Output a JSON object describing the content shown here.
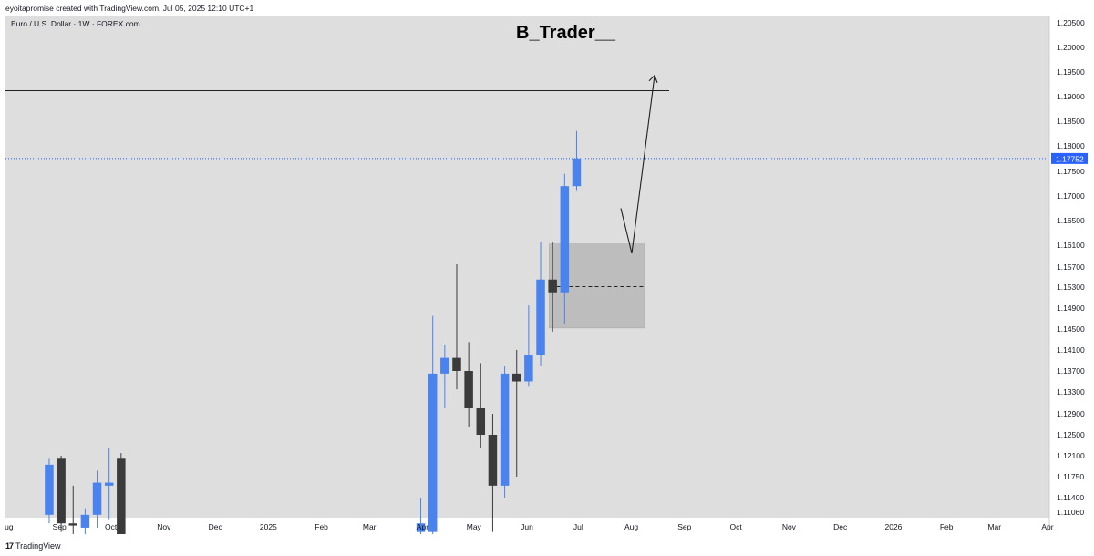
{
  "header": {
    "caption": "eyoitapromise created with TradingView.com, Jul 05, 2025 12:10 UTC+1"
  },
  "footer": {
    "logo_icon": "tradingview-logo-icon",
    "brand": "TradingView"
  },
  "chart_data": {
    "type": "candlestick",
    "title": "B_Trader__",
    "symbol_label": "Euro / U.S. Dollar · 1W · FOREX.com",
    "current_price": "1.17752",
    "colors": {
      "background": "#dedede",
      "up": "#4a82ee",
      "down": "#3b3b3b",
      "price_line": "#2962ff",
      "zone": "#bdbdbd",
      "annotation": "#202020"
    },
    "y_ticks": [
      "1.20500",
      "1.20000",
      "1.19500",
      "1.19000",
      "1.18500",
      "1.18000",
      "1.17500",
      "1.17000",
      "1.16500",
      "1.16100",
      "1.15700",
      "1.15300",
      "1.14900",
      "1.14500",
      "1.14100",
      "1.13700",
      "1.13300",
      "1.12900",
      "1.12500",
      "1.12100",
      "1.11750",
      "1.11400",
      "1.11060"
    ],
    "x_ticks": [
      "Aug",
      "Sep",
      "Oct",
      "Nov",
      "Dec",
      "2025",
      "Feb",
      "Mar",
      "Apr",
      "May",
      "Jun",
      "Jul",
      "Aug",
      "Sep",
      "Oct",
      "Nov",
      "Dec",
      "2026",
      "Feb",
      "Mar",
      "Apr"
    ],
    "candles": [
      {
        "date": "2024-08-26",
        "o": 1.11,
        "h": 1.1205,
        "l": 1.108,
        "c": 1.1195
      },
      {
        "date": "2024-09-02",
        "o": 1.1205,
        "h": 1.121,
        "l": 1.106,
        "c": 1.108
      },
      {
        "date": "2024-09-09",
        "o": 1.108,
        "h": 1.116,
        "l": 1.103,
        "c": 1.1075
      },
      {
        "date": "2024-09-16",
        "o": 1.107,
        "h": 1.1115,
        "l": 1.1,
        "c": 1.11
      },
      {
        "date": "2024-09-23",
        "o": 1.11,
        "h": 1.1185,
        "l": 1.107,
        "c": 1.1165
      },
      {
        "date": "2024-09-30",
        "o": 1.116,
        "h": 1.1225,
        "l": 1.109,
        "c": 1.1165
      },
      {
        "date": "2024-10-07",
        "o": 1.1205,
        "h": 1.1215,
        "l": 1.1,
        "c": 1.103
      },
      {
        "date": "2025-03-31",
        "o": 1.106,
        "h": 1.114,
        "l": 1.102,
        "c": 1.108
      },
      {
        "date": "2025-04-07",
        "o": 1.106,
        "h": 1.1475,
        "l": 1.1,
        "c": 1.1365
      },
      {
        "date": "2025-04-14",
        "o": 1.1365,
        "h": 1.142,
        "l": 1.13,
        "c": 1.1395
      },
      {
        "date": "2025-04-21",
        "o": 1.1395,
        "h": 1.1575,
        "l": 1.1335,
        "c": 1.137
      },
      {
        "date": "2025-04-28",
        "o": 1.137,
        "h": 1.1425,
        "l": 1.1265,
        "c": 1.13
      },
      {
        "date": "2025-05-05",
        "o": 1.13,
        "h": 1.1385,
        "l": 1.1225,
        "c": 1.125
      },
      {
        "date": "2025-05-12",
        "o": 1.125,
        "h": 1.129,
        "l": 1.106,
        "c": 1.116
      },
      {
        "date": "2025-05-19",
        "o": 1.116,
        "h": 1.138,
        "l": 1.114,
        "c": 1.1365
      },
      {
        "date": "2025-05-26",
        "o": 1.1365,
        "h": 1.141,
        "l": 1.1175,
        "c": 1.135
      },
      {
        "date": "2025-06-02",
        "o": 1.135,
        "h": 1.1495,
        "l": 1.134,
        "c": 1.14
      },
      {
        "date": "2025-06-09",
        "o": 1.14,
        "h": 1.1615,
        "l": 1.138,
        "c": 1.1545
      },
      {
        "date": "2025-06-16",
        "o": 1.1545,
        "h": 1.1615,
        "l": 1.1445,
        "c": 1.152
      },
      {
        "date": "2025-06-23",
        "o": 1.152,
        "h": 1.1745,
        "l": 1.146,
        "c": 1.172
      },
      {
        "date": "2025-06-30",
        "o": 1.172,
        "h": 1.183,
        "l": 1.171,
        "c": 1.17752
      }
    ],
    "horizontal_line": 1.1912,
    "zone": {
      "top": 1.1612,
      "bottom": 1.1452,
      "midline": 1.1531
    },
    "projection": [
      [
        1.1675,
        1.1595
      ],
      [
        1.1595,
        1.1943
      ]
    ]
  }
}
